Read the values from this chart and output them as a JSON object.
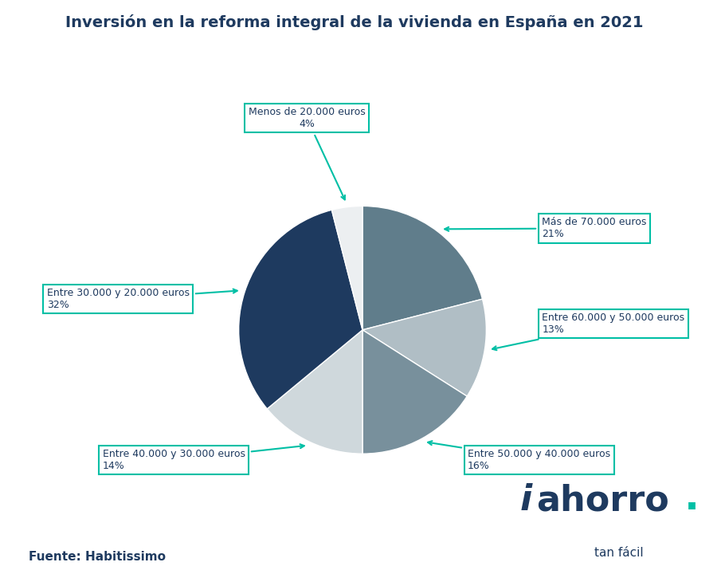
{
  "title": "Inversión en la reforma integral de la vivienda en España en 2021",
  "title_color": "#1e3a5f",
  "title_bar_color": "#00bfa5",
  "slices": [
    {
      "label": "Más de 70.000 euros\n21%",
      "value": 21,
      "color": "#607d8b"
    },
    {
      "label": "Entre 60.000 y 50.000 euros\n13%",
      "value": 13,
      "color": "#b0bec5"
    },
    {
      "label": "Entre 50.000 y 40.000 euros\n16%",
      "value": 16,
      "color": "#78909c"
    },
    {
      "label": "Entre 40.000 y 30.000 euros\n14%",
      "value": 14,
      "color": "#cfd8dc"
    },
    {
      "label": "Entre 30.000 y 20.000 euros\n32%",
      "value": 32,
      "color": "#1e3a5f"
    },
    {
      "label": "Menos de 20.000 euros\n4%",
      "value": 4,
      "color": "#eceff1"
    }
  ],
  "annotation_color": "#00bfa5",
  "annotation_text_color": "#1e3a5f",
  "source_text": "Fuente: Habitissimo",
  "logo_color": "#1e3a5f",
  "logo_dot_color": "#00bfa5",
  "logo_sub": "tan fácil",
  "background_color": "#ffffff"
}
